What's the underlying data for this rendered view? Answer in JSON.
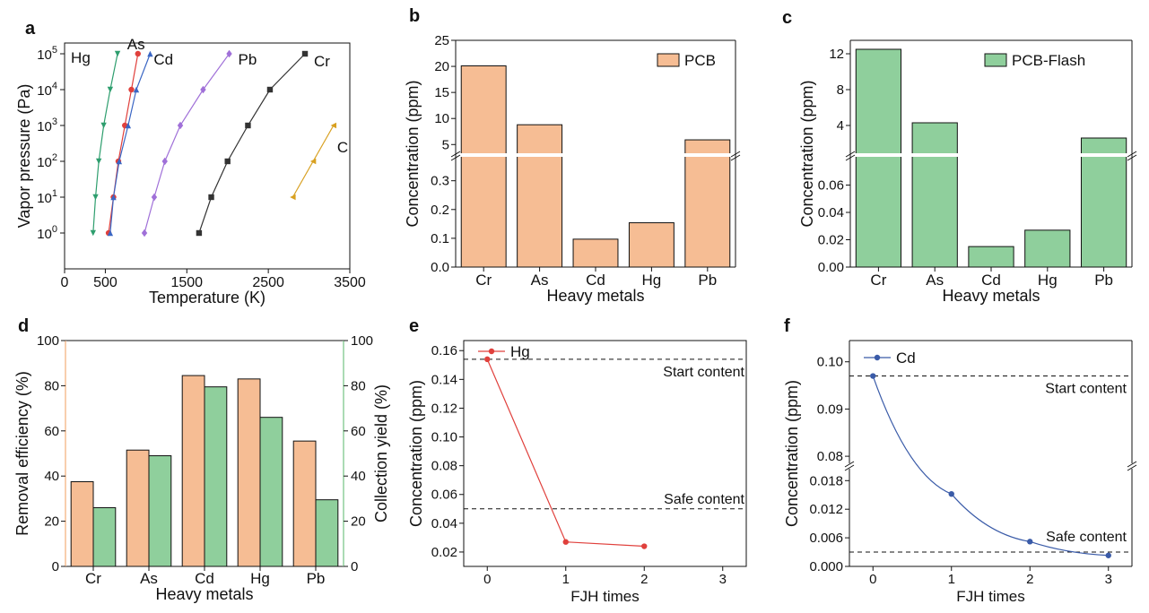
{
  "chart_data": [
    {
      "panel": "a",
      "type": "line",
      "xlabel": "Temperature (K)",
      "ylabel": "Vapor pressure (Pa)",
      "xlim": [
        0,
        3500
      ],
      "xticks": [
        "0",
        "500",
        "1500",
        "2500",
        "3500"
      ],
      "ylim_log10": [
        -1,
        5.3
      ],
      "yticks": [
        {
          "base": "10",
          "exp": "0"
        },
        {
          "base": "10",
          "exp": "1"
        },
        {
          "base": "10",
          "exp": "2"
        },
        {
          "base": "10",
          "exp": "3"
        },
        {
          "base": "10",
          "exp": "4"
        },
        {
          "base": "10",
          "exp": "5"
        }
      ],
      "series": [
        {
          "name": "Hg",
          "color": "#2e9e6e",
          "marker": "tri-down",
          "x": [
            350,
            380,
            420,
            480,
            560,
            650
          ],
          "y": [
            1,
            10,
            100,
            1000,
            10000,
            100000
          ]
        },
        {
          "name": "As",
          "color": "#e0403c",
          "marker": "circle",
          "x": [
            540,
            600,
            660,
            740,
            820,
            900
          ],
          "y": [
            1,
            10,
            100,
            1000,
            10000,
            100000
          ]
        },
        {
          "name": "Cd",
          "color": "#3a66c4",
          "marker": "tri-up",
          "x": [
            560,
            600,
            670,
            780,
            880,
            1050
          ],
          "y": [
            1,
            10,
            100,
            1000,
            10000,
            100000
          ]
        },
        {
          "name": "Pb",
          "color": "#a070d8",
          "marker": "diamond",
          "x": [
            980,
            1100,
            1230,
            1420,
            1700,
            2020
          ],
          "y": [
            1,
            10,
            100,
            1000,
            10000,
            100000
          ]
        },
        {
          "name": "Cr",
          "color": "#333333",
          "marker": "square",
          "x": [
            1650,
            1800,
            2000,
            2250,
            2520,
            2950
          ],
          "y": [
            1,
            10,
            100,
            1000,
            10000,
            100000
          ]
        },
        {
          "name": "C",
          "color": "#d8a020",
          "marker": "tri-left",
          "x": [
            2800,
            3050,
            3300
          ],
          "y": [
            10,
            100,
            1000
          ]
        }
      ],
      "annotations": [
        "Hg",
        "As",
        "Cd",
        "Pb",
        "Cr",
        "C"
      ]
    },
    {
      "panel": "b",
      "type": "bar",
      "categories": [
        "Cr",
        "As",
        "Cd",
        "Hg",
        "Pb"
      ],
      "values": [
        20.1,
        8.8,
        0.097,
        0.154,
        5.9
      ],
      "legend": "PCB",
      "color": "#f6bd94",
      "xlabel": "Heavy metals",
      "ylabel": "Concentration (ppm)",
      "y_break": {
        "lower": [
          0,
          0.38
        ],
        "upper": [
          3.5,
          25
        ]
      },
      "lower_ticks": [
        "0.0",
        "0.1",
        "0.2",
        "0.3"
      ],
      "upper_ticks": [
        "5",
        "10",
        "15",
        "20",
        "25"
      ]
    },
    {
      "panel": "c",
      "type": "bar",
      "categories": [
        "Cr",
        "As",
        "Cd",
        "Hg",
        "Pb"
      ],
      "values": [
        12.5,
        4.3,
        0.015,
        0.027,
        2.6
      ],
      "legend": "PCB-Flash",
      "color": "#8fcf9c",
      "xlabel": "Heavy metals",
      "ylabel": "Concentration (ppm)",
      "y_break": {
        "lower": [
          0,
          0.08
        ],
        "upper": [
          1.0,
          13.5
        ]
      },
      "lower_ticks": [
        "0.00",
        "0.02",
        "0.04",
        "0.06"
      ],
      "upper_ticks": [
        "4",
        "8",
        "12"
      ]
    },
    {
      "panel": "d",
      "type": "bar",
      "categories": [
        "Cr",
        "As",
        "Cd",
        "Hg",
        "Pb"
      ],
      "series": [
        {
          "name": "Removal efficiency",
          "color": "#f6bd94",
          "values": [
            37.5,
            51.5,
            84.5,
            83,
            55.5
          ]
        },
        {
          "name": "Collection yield",
          "color": "#8fcf9c",
          "values": [
            26,
            49,
            79.5,
            66,
            29.5
          ]
        }
      ],
      "xlabel": "Heavy metals",
      "ylabel": "Removal efficiency (%)",
      "ylabel_right": "Collection yield (%)",
      "ylim": [
        0,
        100
      ],
      "yticks": [
        "0",
        "20",
        "40",
        "60",
        "80",
        "100"
      ]
    },
    {
      "panel": "e",
      "type": "line",
      "x": [
        0,
        1,
        2
      ],
      "series": [
        {
          "name": "Hg",
          "color": "#e0403c",
          "values": [
            0.154,
            0.027,
            0.024
          ]
        }
      ],
      "xlabel": "FJH times",
      "ylabel": "Concentration (ppm)",
      "xlim": [
        -0.3,
        3.3
      ],
      "ylim": [
        0.01,
        0.167
      ],
      "xticks": [
        "0",
        "1",
        "2",
        "3"
      ],
      "yticks": [
        "0.02",
        "0.04",
        "0.06",
        "0.08",
        "0.10",
        "0.12",
        "0.14",
        "0.16"
      ],
      "reference_lines": [
        {
          "label": "Start content",
          "value": 0.154
        },
        {
          "label": "Safe content",
          "value": 0.05
        }
      ]
    },
    {
      "panel": "f",
      "type": "line",
      "x": [
        0,
        1,
        2,
        3
      ],
      "series": [
        {
          "name": "Cd",
          "color": "#3a5ba8",
          "values": [
            0.097,
            0.0152,
            0.0052,
            0.0023
          ]
        }
      ],
      "xlabel": "FJH times",
      "ylabel": "Concentration (ppm)",
      "xlim": [
        -0.3,
        3.3
      ],
      "xticks": [
        "0",
        "1",
        "2",
        "3"
      ],
      "y_break": {
        "lower": [
          0,
          0.0205
        ],
        "upper": [
          0.0785,
          0.1045
        ]
      },
      "lower_ticks": [
        "0.000",
        "0.006",
        "0.012",
        "0.018"
      ],
      "upper_ticks": [
        "0.08",
        "0.09",
        "0.10"
      ],
      "reference_lines": [
        {
          "label": "Start content",
          "value": 0.097
        },
        {
          "label": "Safe content",
          "value": 0.003
        }
      ]
    }
  ]
}
